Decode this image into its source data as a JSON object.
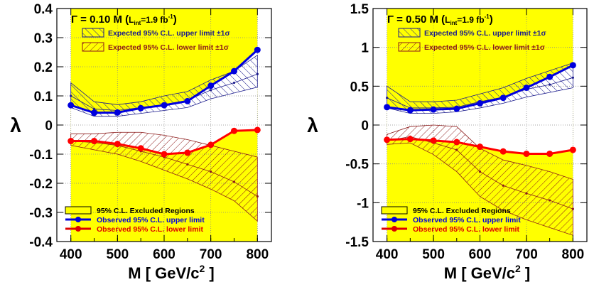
{
  "chart_data": [
    {
      "type": "line",
      "title_main": "Γ = 0.10 M (",
      "title_lum": "L",
      "title_lum_sub": "int",
      "title_lum_val": "=1.9 fb",
      "title_lum_exp": "-1",
      "title_close": ")",
      "xlabel": "M [ GeV/c",
      "xlabel_exp": "2",
      "xlabel_end": " ]",
      "ylabel": "λ",
      "xlim": [
        370,
        830
      ],
      "ylim": [
        -0.4,
        0.4
      ],
      "x_ticks": [
        400,
        500,
        600,
        700,
        800
      ],
      "x_tick_labels": [
        "400",
        "500",
        "600",
        "700",
        "800"
      ],
      "y_ticks": [
        -0.4,
        -0.3,
        -0.2,
        -0.1,
        0,
        0.1,
        0.2,
        0.3,
        0.4
      ],
      "y_tick_labels": [
        "-0.4",
        "-0.3",
        "-0.2",
        "-0.1",
        "0",
        "0.1",
        "0.2",
        "0.3",
        "0.4"
      ],
      "grid": true,
      "x": [
        400,
        450,
        500,
        550,
        600,
        650,
        700,
        750,
        800
      ],
      "observed_upper": [
        0.068,
        0.042,
        0.043,
        0.058,
        0.068,
        0.082,
        0.135,
        0.185,
        0.258
      ],
      "observed_lower": [
        -0.055,
        -0.055,
        -0.065,
        -0.08,
        -0.1,
        -0.095,
        -0.068,
        -0.02,
        -0.017
      ],
      "expected_upper_median": [
        0.1,
        0.055,
        0.05,
        0.06,
        0.07,
        0.085,
        0.12,
        0.145,
        0.175
      ],
      "expected_upper_band_low": [
        0.06,
        0.03,
        0.03,
        0.04,
        0.05,
        0.06,
        0.09,
        0.11,
        0.13
      ],
      "expected_upper_band_high": [
        0.145,
        0.08,
        0.07,
        0.08,
        0.1,
        0.115,
        0.155,
        0.185,
        0.24
      ],
      "expected_lower_median": [
        -0.055,
        -0.06,
        -0.07,
        -0.09,
        -0.11,
        -0.135,
        -0.16,
        -0.195,
        -0.245
      ],
      "expected_lower_band_low": [
        -0.07,
        -0.085,
        -0.1,
        -0.125,
        -0.155,
        -0.185,
        -0.22,
        -0.26,
        -0.33
      ],
      "expected_lower_band_high": [
        -0.03,
        -0.03,
        -0.025,
        -0.025,
        -0.035,
        -0.05,
        -0.07,
        -0.09,
        -0.11
      ],
      "excluded_region": {
        "x_range": [
          400,
          800
        ],
        "gap_upper_bound": "observed_upper",
        "gap_lower_bound": "observed_lower"
      },
      "legend_top": [
        {
          "label": "Expected 95% C.L. upper limit ±1σ",
          "color": "#1a1a8c",
          "style": "hatch-back"
        },
        {
          "label": "Expected 95% C.L. lower limit ±1σ",
          "color": "#8c1a1a",
          "style": "hatch-fwd"
        }
      ],
      "legend_bottom": [
        {
          "label": "95% C.L. Excluded Regions",
          "color": "#000000",
          "style": "fill-yellow"
        },
        {
          "label": "Observed 95% C.L. upper limit",
          "color": "#0000dd",
          "style": "line-marker"
        },
        {
          "label": "Observed 95% C.L. lower limit",
          "color": "#dd0000",
          "style": "line-marker"
        }
      ]
    },
    {
      "type": "line",
      "title_main": "Γ = 0.50 M (",
      "title_lum": "L",
      "title_lum_sub": "int",
      "title_lum_val": "=1.9 fb",
      "title_lum_exp": "-1",
      "title_close": ")",
      "xlabel": "M [ GeV/c",
      "xlabel_exp": "2",
      "xlabel_end": " ]",
      "ylabel": "λ",
      "xlim": [
        370,
        830
      ],
      "ylim": [
        -1.5,
        1.5
      ],
      "x_ticks": [
        400,
        500,
        600,
        700,
        800
      ],
      "x_tick_labels": [
        "400",
        "500",
        "600",
        "700",
        "800"
      ],
      "y_ticks": [
        -1.5,
        -1,
        -0.5,
        0,
        0.5,
        1,
        1.5
      ],
      "y_tick_labels": [
        "-1.5",
        "-1",
        "-0.5",
        "0",
        "0.5",
        "1",
        "1.5"
      ],
      "grid": true,
      "x": [
        400,
        450,
        500,
        550,
        600,
        650,
        700,
        750,
        800
      ],
      "observed_upper": [
        0.23,
        0.19,
        0.2,
        0.21,
        0.28,
        0.35,
        0.48,
        0.62,
        0.77
      ],
      "observed_lower": [
        -0.19,
        -0.18,
        -0.2,
        -0.22,
        -0.28,
        -0.34,
        -0.37,
        -0.37,
        -0.32
      ],
      "expected_upper_median": [
        0.35,
        0.22,
        0.22,
        0.23,
        0.3,
        0.36,
        0.46,
        0.52,
        0.61
      ],
      "expected_upper_band_low": [
        0.22,
        0.15,
        0.15,
        0.17,
        0.22,
        0.28,
        0.36,
        0.42,
        0.48
      ],
      "expected_upper_band_high": [
        0.5,
        0.3,
        0.3,
        0.32,
        0.4,
        0.48,
        0.6,
        0.7,
        0.8
      ],
      "expected_lower_median": [
        -0.2,
        -0.15,
        -0.23,
        -0.32,
        -0.6,
        -0.78,
        -0.88,
        -0.97,
        -1.08
      ],
      "expected_lower_band_low": [
        -0.25,
        -0.23,
        -0.38,
        -0.6,
        -0.92,
        -1.1,
        -1.22,
        -1.32,
        -1.42
      ],
      "expected_lower_band_high": [
        -0.12,
        -0.02,
        0.0,
        -0.02,
        -0.3,
        -0.45,
        -0.52,
        -0.6,
        -0.7
      ],
      "excluded_region": {
        "x_range": [
          400,
          800
        ],
        "gap_upper_bound": "observed_upper",
        "gap_lower_bound": "observed_lower"
      },
      "legend_top": [
        {
          "label": "Expected 95% C.L. upper limit ±1σ",
          "color": "#1a1a8c",
          "style": "hatch-back"
        },
        {
          "label": "Expected 95% C.L. lower limit ±1σ",
          "color": "#8c1a1a",
          "style": "hatch-fwd"
        }
      ],
      "legend_bottom": [
        {
          "label": "95% C.L. Excluded Regions",
          "color": "#000000",
          "style": "fill-yellow"
        },
        {
          "label": "Observed 95% C.L. upper limit",
          "color": "#0000dd",
          "style": "line-marker"
        },
        {
          "label": "Observed 95% C.L. lower limit",
          "color": "#dd0000",
          "style": "line-marker"
        }
      ]
    }
  ],
  "colors": {
    "excluded_fill": "#ffff00",
    "observed_upper": "#0000dd",
    "observed_lower": "#ff0000",
    "expected_upper": "#1a1a8c",
    "expected_lower": "#8c1a1a",
    "grid": "#888888"
  }
}
